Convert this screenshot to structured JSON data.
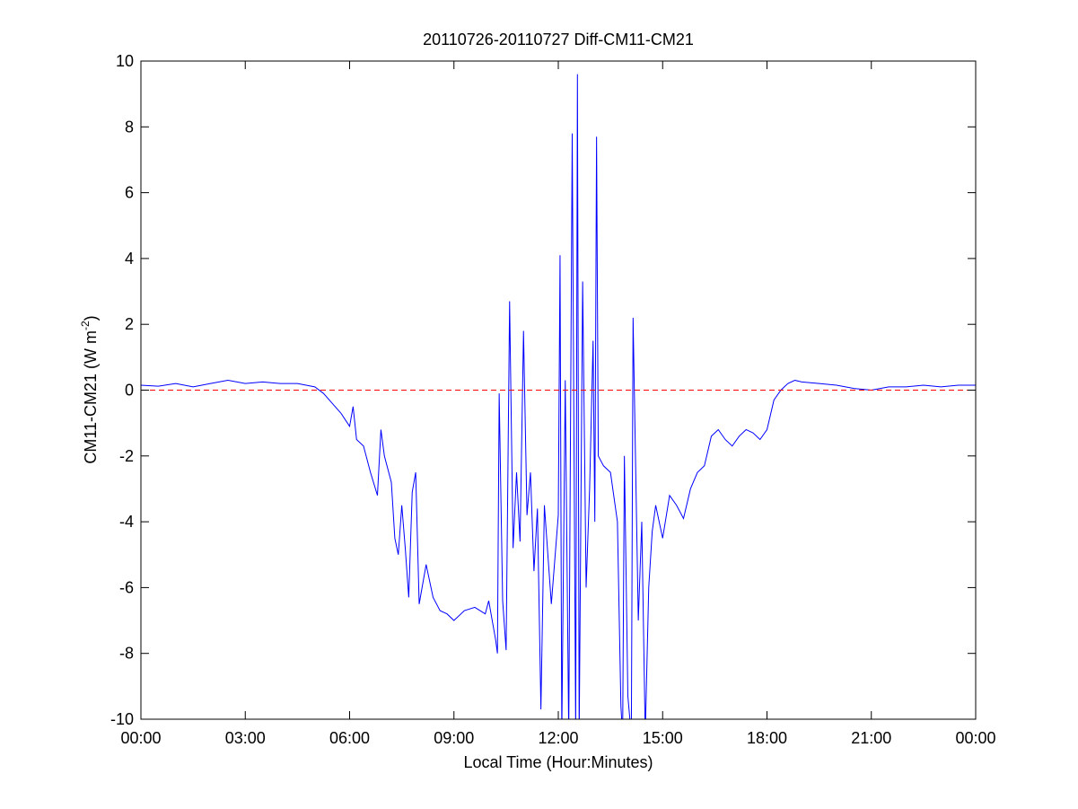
{
  "chart_data": {
    "type": "line",
    "title": "20110726-20110727 Diff-CM11-CM21",
    "xlabel": "Local Time (Hour:Minutes)",
    "ylabel": {
      "text": "CM11-CM21 (W m",
      "superscript": "-2",
      "suffix": ")"
    },
    "xlim": [
      0,
      24
    ],
    "ylim": [
      -10,
      10
    ],
    "xticks": [
      {
        "value": 0,
        "label": "00:00"
      },
      {
        "value": 3,
        "label": "03:00"
      },
      {
        "value": 6,
        "label": "06:00"
      },
      {
        "value": 9,
        "label": "09:00"
      },
      {
        "value": 12,
        "label": "12:00"
      },
      {
        "value": 15,
        "label": "15:00"
      },
      {
        "value": 18,
        "label": "18:00"
      },
      {
        "value": 21,
        "label": "21:00"
      },
      {
        "value": 24,
        "label": "00:00"
      }
    ],
    "yticks": [
      -10,
      -8,
      -6,
      -4,
      -2,
      0,
      2,
      4,
      6,
      8,
      10
    ],
    "reference_line": {
      "value": 0,
      "color": "#ff0000",
      "style": "dashed"
    },
    "x": [
      0,
      0.5,
      1,
      1.5,
      2,
      2.5,
      3,
      3.5,
      4,
      4.5,
      5,
      5.25,
      5.5,
      5.75,
      6,
      6.1,
      6.2,
      6.4,
      6.6,
      6.8,
      6.9,
      7,
      7.2,
      7.3,
      7.4,
      7.5,
      7.6,
      7.7,
      7.8,
      7.9,
      8,
      8.2,
      8.4,
      8.6,
      8.8,
      9,
      9.3,
      9.6,
      9.9,
      10,
      10.2,
      10.25,
      10.3,
      10.4,
      10.5,
      10.6,
      10.7,
      10.8,
      10.9,
      11,
      11.1,
      11.2,
      11.3,
      11.4,
      11.5,
      11.6,
      11.7,
      11.8,
      12,
      12.05,
      12.1,
      12.2,
      12.3,
      12.4,
      12.5,
      12.55,
      12.6,
      12.7,
      12.8,
      12.9,
      13,
      13.05,
      13.1,
      13.15,
      13.3,
      13.5,
      13.7,
      13.8,
      13.85,
      13.9,
      14,
      14.1,
      14.15,
      14.3,
      14.4,
      14.5,
      14.6,
      14.7,
      14.8,
      15,
      15.2,
      15.4,
      15.6,
      15.8,
      16,
      16.2,
      16.4,
      16.6,
      16.8,
      17,
      17.2,
      17.4,
      17.6,
      17.8,
      18,
      18.2,
      18.4,
      18.6,
      18.8,
      19,
      19.5,
      20,
      20.5,
      21,
      21.5,
      22,
      22.5,
      23,
      23.5,
      24
    ],
    "series": [
      {
        "name": "Diff-CM11-CM21",
        "color": "#0000ff",
        "values": [
          0.15,
          0.12,
          0.2,
          0.1,
          0.2,
          0.3,
          0.2,
          0.25,
          0.2,
          0.2,
          0.1,
          -0.1,
          -0.4,
          -0.7,
          -1.1,
          -0.5,
          -1.5,
          -1.7,
          -2.5,
          -3.2,
          -1.2,
          -2,
          -2.8,
          -4.5,
          -5,
          -3.5,
          -4.8,
          -6.3,
          -3.1,
          -2.5,
          -6.5,
          -5.3,
          -6.3,
          -6.7,
          -6.8,
          -7,
          -6.7,
          -6.6,
          -6.8,
          -6.4,
          -7.6,
          -8,
          -0.1,
          -6.4,
          -7.9,
          2.7,
          -4.8,
          -2.5,
          -4.6,
          1.8,
          -3.8,
          -2.5,
          -5.5,
          -3.6,
          -9.7,
          -3.5,
          -5,
          -6.5,
          -3.8,
          4.1,
          -10.5,
          0.3,
          -10.5,
          7.8,
          -10.5,
          9.6,
          -10.5,
          3.3,
          -6,
          -3,
          1.5,
          -4,
          7.7,
          -2,
          -2.3,
          -2.5,
          -4,
          -9.6,
          -10.5,
          -2,
          -9.3,
          -10.5,
          2.2,
          -7,
          -4,
          -10.5,
          -6,
          -4.3,
          -3.5,
          -4.5,
          -3.2,
          -3.5,
          -3.9,
          -3,
          -2.5,
          -2.3,
          -1.4,
          -1.2,
          -1.5,
          -1.7,
          -1.4,
          -1.2,
          -1.3,
          -1.5,
          -1.2,
          -0.3,
          0,
          0.2,
          0.3,
          0.25,
          0.2,
          0.15,
          0.05,
          0,
          0.1,
          0.1,
          0.15,
          0.1,
          0.15,
          0.15
        ]
      }
    ]
  }
}
